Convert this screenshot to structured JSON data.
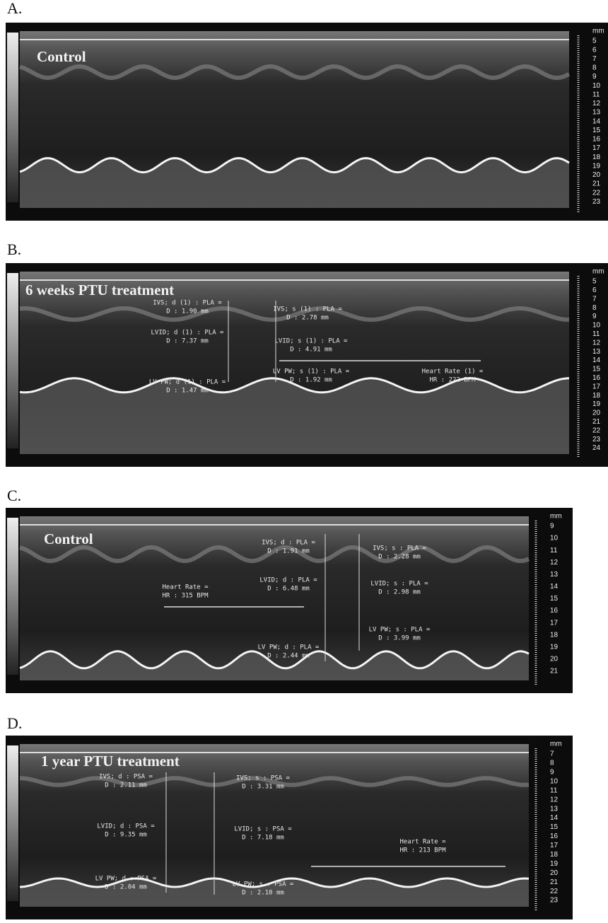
{
  "panels": [
    {
      "label": "A.",
      "title": "Control",
      "annotations": [],
      "scale": {
        "unit": "mm",
        "ticks": [
          5,
          6,
          7,
          8,
          9,
          10,
          11,
          12,
          13,
          14,
          15,
          16,
          17,
          18,
          19,
          20,
          21,
          22,
          23
        ]
      }
    },
    {
      "label": "B.",
      "title": "6 weeks PTU treatment",
      "annotations": [
        {
          "lines": [
            "IVS; d (1) : PLA =",
            "D : 1.90 mm"
          ]
        },
        {
          "lines": [
            "LVID; d (1) : PLA =",
            "D : 7.37 mm"
          ]
        },
        {
          "lines": [
            "LV PW; d (1) : PLA =",
            "D : 1.47 mm"
          ]
        },
        {
          "lines": [
            "IVS; s (1) : PLA =",
            "D : 2.78 mm"
          ]
        },
        {
          "lines": [
            "LVID; s (1) : PLA =",
            "D : 4.91 mm"
          ]
        },
        {
          "lines": [
            "LV PW; s (1) : PLA =",
            "D : 1.92 mm"
          ]
        },
        {
          "lines": [
            "Heart Rate (1) =",
            "HR : 222 BPM"
          ]
        }
      ],
      "scale": {
        "unit": "mm",
        "ticks": [
          5,
          6,
          7,
          8,
          9,
          10,
          11,
          12,
          13,
          14,
          15,
          16,
          17,
          18,
          19,
          20,
          21,
          22,
          23,
          24
        ]
      }
    },
    {
      "label": "C.",
      "title": "Control",
      "annotations": [
        {
          "lines": [
            "Heart Rate =",
            "HR : 315 BPM"
          ]
        },
        {
          "lines": [
            "IVS; d : PLA =",
            "D : 1.91 mm"
          ]
        },
        {
          "lines": [
            "LVID; d : PLA =",
            "D : 6.48 mm"
          ]
        },
        {
          "lines": [
            "LV PW; d : PLA =",
            "D : 2.44 mm"
          ]
        },
        {
          "lines": [
            "IVS; s : PLA =",
            "D : 2.28 mm"
          ]
        },
        {
          "lines": [
            "LVID; s : PLA =",
            "D : 2.98 mm"
          ]
        },
        {
          "lines": [
            "LV PW; s : PLA =",
            "D : 3.99 mm"
          ]
        }
      ],
      "scale": {
        "unit": "mm",
        "ticks": [
          9,
          10,
          11,
          12,
          13,
          14,
          15,
          16,
          17,
          18,
          19,
          20,
          21
        ]
      }
    },
    {
      "label": "D.",
      "title": "1 year PTU treatment",
      "annotations": [
        {
          "lines": [
            "IVS; d : PSA =",
            "D : 2.11 mm"
          ]
        },
        {
          "lines": [
            "LVID; d : PSA =",
            "D : 9.35 mm"
          ]
        },
        {
          "lines": [
            "LV PW; d : PSA =",
            "D : 2.04 mm"
          ]
        },
        {
          "lines": [
            "IVS; s : PSA =",
            "D : 3.31 mm"
          ]
        },
        {
          "lines": [
            "LVID; s : PSA =",
            "D : 7.18 mm"
          ]
        },
        {
          "lines": [
            "LV PW; s : PSA =",
            "D : 2.10 mm"
          ]
        },
        {
          "lines": [
            "Heart Rate =",
            "HR : 213 BPM"
          ]
        }
      ],
      "scale": {
        "unit": "mm",
        "ticks": [
          7,
          8,
          9,
          10,
          11,
          12,
          13,
          14,
          15,
          16,
          17,
          18,
          19,
          20,
          21,
          22,
          23
        ]
      }
    }
  ]
}
